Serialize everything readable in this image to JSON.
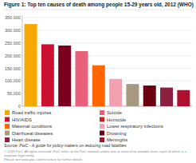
{
  "chart_data": {
    "type": "bar",
    "title": "Figure 1: Top ten causes of death among people 15-29 years old, 2012 (WHO)",
    "categories": [
      null,
      null,
      null,
      null,
      null,
      null,
      null,
      null,
      null,
      null
    ],
    "values": [
      325000,
      245000,
      240000,
      218000,
      162000,
      108000,
      88000,
      82000,
      74000,
      64000
    ],
    "colors": [
      "#F5A800",
      "#CC1133",
      "#7B0020",
      "#E8607A",
      "#FF6600",
      "#F5A0B0",
      "#A89880",
      "#6B0010",
      "#8B2040",
      "#B01030"
    ],
    "ylim": [
      0,
      360000
    ],
    "yticks": [
      0,
      {
        "value": 50000,
        "label": "50,000"
      },
      {
        "value": 100000,
        "label": "100,000"
      },
      {
        "value": 150000,
        "label": "150,000"
      },
      {
        "value": 200000,
        "label": "200,000"
      },
      {
        "value": 250000,
        "label": "250,000"
      },
      {
        "value": 300000,
        "label": "300,000"
      },
      {
        "value": 350000,
        "label": "350,000"
      }
    ],
    "grid": true,
    "tick_labels": "y",
    "legend_entries": [
      {
        "name": "Road traffic injuries",
        "color": "#F5A800"
      },
      {
        "name": "HIV/AIDS",
        "color": "#CC1133"
      },
      {
        "name": "Maternal conditions",
        "color": "#FF6600"
      },
      {
        "name": "Diarrhoeal diseases",
        "color": "#A89880"
      },
      {
        "name": "Heart disease",
        "color": "#8B2040"
      },
      {
        "name": "Suicide",
        "color": "#E8607A"
      },
      {
        "name": "Homicide",
        "color": "#CC2020"
      },
      {
        "name": "Lower respiratory infections",
        "color": "#F5A0B0"
      },
      {
        "name": "Drowning",
        "color": "#6B0010"
      },
      {
        "name": "Meningitis",
        "color": "#B01030"
      }
    ],
    "source": "Source: PwC - A guide for policy makers on reducing road fatalities",
    "footnote": "© 2019 PwC. All rights reserved. PwC refers to the PwC network and/or one or more of its member firms, each of which is a separate legal entity.\nPlease see www.pwc.com/structure for further details."
  }
}
